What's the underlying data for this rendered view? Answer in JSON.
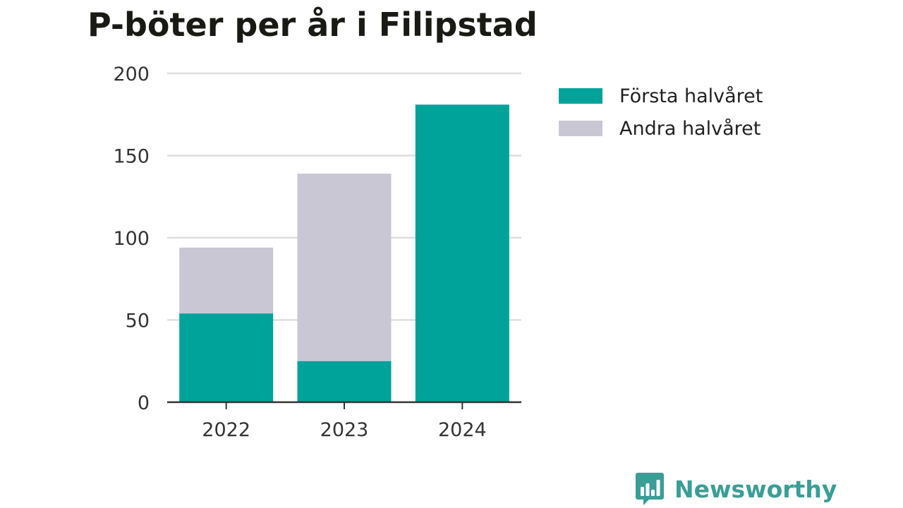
{
  "chart_data": {
    "type": "bar",
    "stacked": true,
    "title": "P-böter per år i Filipstad",
    "categories": [
      "2022",
      "2023",
      "2024"
    ],
    "series": [
      {
        "name": "Första halvåret",
        "color": "#00a39a",
        "values": [
          54,
          25,
          181
        ]
      },
      {
        "name": "Andra halvåret",
        "color": "#c8c7d3",
        "values": [
          40,
          114,
          0
        ]
      }
    ],
    "yticks": [
      0,
      50,
      100,
      150,
      200
    ],
    "ylim": [
      0,
      200
    ],
    "grid": true,
    "legend": "right"
  },
  "brand": {
    "name": "Newsworthy",
    "icon": "bar-chart-speech-icon",
    "color": "#3a9e97"
  }
}
